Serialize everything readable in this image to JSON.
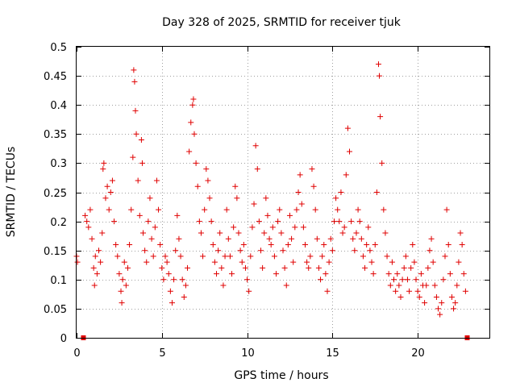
{
  "chart_data": {
    "type": "scatter",
    "title": "Day 328 of 2025, SRMTID for receiver tjuk",
    "xlabel": "GPS time / hours",
    "ylabel": "SRMTID / TECUs",
    "xlim": [
      0,
      24.2
    ],
    "ylim": [
      0,
      0.5
    ],
    "x_ticks": [
      "0",
      "5",
      "10",
      "15",
      "20"
    ],
    "x_tick_values": [
      0,
      5,
      10,
      15,
      20
    ],
    "y_ticks": [
      "0",
      "0.05",
      "0.1",
      "0.15",
      "0.2",
      "0.25",
      "0.3",
      "0.35",
      "0.4",
      "0.45",
      "0.5"
    ],
    "y_tick_values": [
      0,
      0.05,
      0.1,
      0.15,
      0.2,
      0.25,
      0.3,
      0.35,
      0.4,
      0.45,
      0.5
    ],
    "grid": true,
    "marker": "plus",
    "color": "#e00000",
    "series": [
      {
        "values_hours_tecu": [
          [
            0.0,
            0.14
          ],
          [
            0.05,
            0.13
          ],
          [
            0.5,
            0.21
          ],
          [
            0.6,
            0.2
          ],
          [
            0.7,
            0.19
          ],
          [
            0.8,
            0.22
          ],
          [
            0.9,
            0.17
          ],
          [
            1.0,
            0.12
          ],
          [
            1.05,
            0.09
          ],
          [
            1.1,
            0.14
          ],
          [
            1.2,
            0.11
          ],
          [
            1.3,
            0.15
          ],
          [
            1.4,
            0.13
          ],
          [
            1.5,
            0.18
          ],
          [
            1.55,
            0.29
          ],
          [
            1.6,
            0.3
          ],
          [
            1.7,
            0.24
          ],
          [
            1.8,
            0.26
          ],
          [
            1.9,
            0.22
          ],
          [
            2.0,
            0.25
          ],
          [
            2.1,
            0.27
          ],
          [
            2.2,
            0.2
          ],
          [
            2.3,
            0.16
          ],
          [
            2.4,
            0.14
          ],
          [
            2.5,
            0.11
          ],
          [
            2.6,
            0.08
          ],
          [
            2.65,
            0.06
          ],
          [
            2.7,
            0.1
          ],
          [
            2.8,
            0.13
          ],
          [
            2.9,
            0.09
          ],
          [
            3.0,
            0.12
          ],
          [
            3.1,
            0.16
          ],
          [
            3.2,
            0.22
          ],
          [
            3.3,
            0.31
          ],
          [
            3.35,
            0.46
          ],
          [
            3.4,
            0.44
          ],
          [
            3.45,
            0.39
          ],
          [
            3.5,
            0.35
          ],
          [
            3.6,
            0.27
          ],
          [
            3.7,
            0.21
          ],
          [
            3.8,
            0.34
          ],
          [
            3.85,
            0.3
          ],
          [
            3.9,
            0.18
          ],
          [
            4.0,
            0.15
          ],
          [
            4.1,
            0.13
          ],
          [
            4.2,
            0.2
          ],
          [
            4.3,
            0.24
          ],
          [
            4.4,
            0.17
          ],
          [
            4.5,
            0.14
          ],
          [
            4.6,
            0.19
          ],
          [
            4.7,
            0.27
          ],
          [
            4.8,
            0.22
          ],
          [
            4.9,
            0.16
          ],
          [
            5.0,
            0.12
          ],
          [
            5.1,
            0.1
          ],
          [
            5.2,
            0.14
          ],
          [
            5.3,
            0.13
          ],
          [
            5.4,
            0.11
          ],
          [
            5.5,
            0.08
          ],
          [
            5.6,
            0.06
          ],
          [
            5.7,
            0.1
          ],
          [
            5.8,
            0.15
          ],
          [
            5.9,
            0.21
          ],
          [
            6.0,
            0.17
          ],
          [
            6.1,
            0.14
          ],
          [
            6.2,
            0.1
          ],
          [
            6.3,
            0.07
          ],
          [
            6.4,
            0.09
          ],
          [
            6.5,
            0.12
          ],
          [
            6.6,
            0.32
          ],
          [
            6.7,
            0.37
          ],
          [
            6.8,
            0.4
          ],
          [
            6.85,
            0.41
          ],
          [
            6.9,
            0.35
          ],
          [
            7.0,
            0.3
          ],
          [
            7.1,
            0.26
          ],
          [
            7.2,
            0.2
          ],
          [
            7.3,
            0.18
          ],
          [
            7.4,
            0.14
          ],
          [
            7.5,
            0.22
          ],
          [
            7.6,
            0.29
          ],
          [
            7.7,
            0.27
          ],
          [
            7.8,
            0.24
          ],
          [
            7.9,
            0.2
          ],
          [
            8.0,
            0.16
          ],
          [
            8.1,
            0.13
          ],
          [
            8.2,
            0.11
          ],
          [
            8.3,
            0.15
          ],
          [
            8.4,
            0.18
          ],
          [
            8.5,
            0.12
          ],
          [
            8.6,
            0.09
          ],
          [
            8.7,
            0.14
          ],
          [
            8.8,
            0.22
          ],
          [
            8.9,
            0.17
          ],
          [
            9.0,
            0.14
          ],
          [
            9.1,
            0.11
          ],
          [
            9.2,
            0.19
          ],
          [
            9.3,
            0.26
          ],
          [
            9.4,
            0.24
          ],
          [
            9.5,
            0.18
          ],
          [
            9.6,
            0.15
          ],
          [
            9.7,
            0.13
          ],
          [
            9.8,
            0.16
          ],
          [
            9.9,
            0.12
          ],
          [
            10.0,
            0.1
          ],
          [
            10.1,
            0.08
          ],
          [
            10.2,
            0.14
          ],
          [
            10.3,
            0.19
          ],
          [
            10.4,
            0.23
          ],
          [
            10.5,
            0.33
          ],
          [
            10.6,
            0.29
          ],
          [
            10.7,
            0.2
          ],
          [
            10.8,
            0.15
          ],
          [
            10.9,
            0.12
          ],
          [
            11.0,
            0.18
          ],
          [
            11.1,
            0.24
          ],
          [
            11.2,
            0.21
          ],
          [
            11.3,
            0.17
          ],
          [
            11.4,
            0.16
          ],
          [
            11.5,
            0.19
          ],
          [
            11.6,
            0.14
          ],
          [
            11.7,
            0.11
          ],
          [
            11.8,
            0.2
          ],
          [
            11.9,
            0.22
          ],
          [
            12.0,
            0.18
          ],
          [
            12.1,
            0.15
          ],
          [
            12.2,
            0.12
          ],
          [
            12.3,
            0.09
          ],
          [
            12.4,
            0.16
          ],
          [
            12.5,
            0.21
          ],
          [
            12.6,
            0.17
          ],
          [
            12.7,
            0.13
          ],
          [
            12.8,
            0.19
          ],
          [
            12.9,
            0.22
          ],
          [
            13.0,
            0.25
          ],
          [
            13.1,
            0.28
          ],
          [
            13.2,
            0.23
          ],
          [
            13.3,
            0.19
          ],
          [
            13.4,
            0.16
          ],
          [
            13.5,
            0.13
          ],
          [
            13.6,
            0.12
          ],
          [
            13.7,
            0.14
          ],
          [
            13.8,
            0.29
          ],
          [
            13.9,
            0.26
          ],
          [
            14.0,
            0.22
          ],
          [
            14.1,
            0.17
          ],
          [
            14.2,
            0.12
          ],
          [
            14.3,
            0.1
          ],
          [
            14.4,
            0.14
          ],
          [
            14.5,
            0.16
          ],
          [
            14.6,
            0.11
          ],
          [
            14.7,
            0.08
          ],
          [
            14.8,
            0.13
          ],
          [
            14.9,
            0.17
          ],
          [
            15.0,
            0.15
          ],
          [
            15.1,
            0.2
          ],
          [
            15.2,
            0.24
          ],
          [
            15.3,
            0.22
          ],
          [
            15.4,
            0.2
          ],
          [
            15.5,
            0.25
          ],
          [
            15.6,
            0.18
          ],
          [
            15.7,
            0.19
          ],
          [
            15.8,
            0.28
          ],
          [
            15.9,
            0.36
          ],
          [
            16.0,
            0.32
          ],
          [
            16.1,
            0.2
          ],
          [
            16.2,
            0.17
          ],
          [
            16.3,
            0.15
          ],
          [
            16.4,
            0.18
          ],
          [
            16.5,
            0.22
          ],
          [
            16.6,
            0.2
          ],
          [
            16.7,
            0.17
          ],
          [
            16.8,
            0.14
          ],
          [
            16.9,
            0.12
          ],
          [
            17.0,
            0.16
          ],
          [
            17.1,
            0.19
          ],
          [
            17.2,
            0.15
          ],
          [
            17.3,
            0.13
          ],
          [
            17.4,
            0.11
          ],
          [
            17.5,
            0.16
          ],
          [
            17.6,
            0.25
          ],
          [
            17.7,
            0.47
          ],
          [
            17.75,
            0.45
          ],
          [
            17.8,
            0.38
          ],
          [
            17.9,
            0.3
          ],
          [
            18.0,
            0.22
          ],
          [
            18.1,
            0.18
          ],
          [
            18.2,
            0.14
          ],
          [
            18.3,
            0.11
          ],
          [
            18.4,
            0.09
          ],
          [
            18.5,
            0.13
          ],
          [
            18.6,
            0.1
          ],
          [
            18.7,
            0.08
          ],
          [
            18.8,
            0.11
          ],
          [
            18.9,
            0.09
          ],
          [
            19.0,
            0.07
          ],
          [
            19.1,
            0.1
          ],
          [
            19.2,
            0.12
          ],
          [
            19.3,
            0.14
          ],
          [
            19.4,
            0.1
          ],
          [
            19.5,
            0.08
          ],
          [
            19.6,
            0.12
          ],
          [
            19.7,
            0.16
          ],
          [
            19.8,
            0.13
          ],
          [
            19.9,
            0.1
          ],
          [
            20.0,
            0.08
          ],
          [
            20.1,
            0.07
          ],
          [
            20.2,
            0.11
          ],
          [
            20.3,
            0.09
          ],
          [
            20.4,
            0.06
          ],
          [
            20.5,
            0.09
          ],
          [
            20.6,
            0.12
          ],
          [
            20.7,
            0.15
          ],
          [
            20.8,
            0.17
          ],
          [
            20.9,
            0.13
          ],
          [
            21.0,
            0.09
          ],
          [
            21.1,
            0.07
          ],
          [
            21.2,
            0.05
          ],
          [
            21.3,
            0.04
          ],
          [
            21.4,
            0.06
          ],
          [
            21.5,
            0.1
          ],
          [
            21.6,
            0.14
          ],
          [
            21.7,
            0.22
          ],
          [
            21.8,
            0.16
          ],
          [
            21.9,
            0.11
          ],
          [
            22.0,
            0.07
          ],
          [
            22.1,
            0.05
          ],
          [
            22.2,
            0.06
          ],
          [
            22.3,
            0.09
          ],
          [
            22.4,
            0.13
          ],
          [
            22.5,
            0.18
          ],
          [
            22.6,
            0.16
          ],
          [
            22.7,
            0.11
          ],
          [
            22.8,
            0.08
          ]
        ]
      }
    ],
    "baseline_markers_hours": [
      0.4,
      22.9
    ]
  }
}
